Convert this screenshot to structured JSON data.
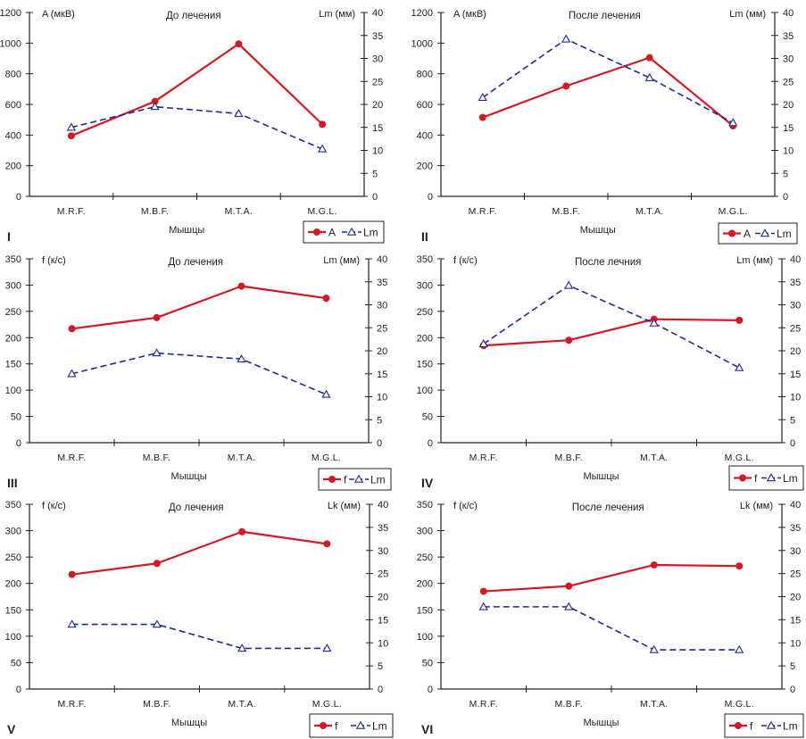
{
  "colors": {
    "series_primary": "#d21a24",
    "series_secondary": "#1f2a8f",
    "axis": "#222222"
  },
  "chart_data": [
    {
      "panel": "I",
      "type": "line",
      "title": "До лечения",
      "xlabel": "Мышцы",
      "ylabel_left": "A (мкВ)",
      "ylabel_right": "Lm (мм)",
      "categories": [
        "M.R.F.",
        "M.B.F.",
        "M.T.A.",
        "M.G.L."
      ],
      "ylim_left": [
        0,
        1200
      ],
      "yticks_left": [
        0,
        200,
        400,
        600,
        800,
        1000,
        1200
      ],
      "ylim_right": [
        0,
        40
      ],
      "yticks_right": [
        0,
        5,
        10,
        15,
        20,
        25,
        30,
        35,
        40
      ],
      "grid": false,
      "legend_position": "bottom-right",
      "series": [
        {
          "name": "A",
          "axis": "left",
          "style": "solid",
          "marker": "circle",
          "values": [
            395,
            620,
            995,
            470
          ]
        },
        {
          "name": "Lm",
          "axis": "right",
          "style": "dashed",
          "marker": "triangle",
          "values": [
            15.0,
            19.5,
            18.0,
            10.3
          ]
        }
      ]
    },
    {
      "panel": "II",
      "type": "line",
      "title": "После лечения",
      "xlabel": "Мышцы",
      "ylabel_left": "A (мкВ)",
      "ylabel_right": "Lm (мм)",
      "categories": [
        "M.R.F.",
        "M.B.F.",
        "M.T.A.",
        "M.G.L."
      ],
      "ylim_left": [
        0,
        1200
      ],
      "yticks_left": [
        0,
        200,
        400,
        600,
        800,
        1000,
        1200
      ],
      "ylim_right": [
        0,
        40
      ],
      "yticks_right": [
        0,
        5,
        10,
        15,
        20,
        25,
        30,
        35,
        40
      ],
      "grid": false,
      "legend_position": "bottom-right",
      "series": [
        {
          "name": "A",
          "axis": "left",
          "style": "solid",
          "marker": "circle",
          "values": [
            515,
            720,
            905,
            460
          ]
        },
        {
          "name": "Lm",
          "axis": "right",
          "style": "dashed",
          "marker": "triangle",
          "values": [
            21.5,
            34.2,
            25.8,
            16.0
          ]
        }
      ]
    },
    {
      "panel": "III",
      "type": "line",
      "title": "До лечения",
      "xlabel": "Мышцы",
      "ylabel_left": "f (к/с)",
      "ylabel_right": "Lm (мм)",
      "categories": [
        "M.R.F.",
        "M.B.F.",
        "M.T.A.",
        "M.G.L."
      ],
      "ylim_left": [
        0,
        350
      ],
      "yticks_left": [
        0,
        50,
        100,
        150,
        200,
        250,
        300,
        350
      ],
      "ylim_right": [
        0,
        40
      ],
      "yticks_right": [
        0,
        5,
        10,
        15,
        20,
        25,
        30,
        35,
        40
      ],
      "grid": false,
      "legend_position": "bottom-right",
      "series": [
        {
          "name": "f",
          "axis": "left",
          "style": "solid",
          "marker": "circle",
          "values": [
            217,
            238,
            298,
            275
          ]
        },
        {
          "name": "Lm",
          "axis": "right",
          "style": "dashed",
          "marker": "triangle",
          "values": [
            15.0,
            19.5,
            18.2,
            10.5
          ]
        }
      ]
    },
    {
      "panel": "IV",
      "type": "line",
      "title": "После лечния",
      "xlabel": "Мышцы",
      "ylabel_left": "f (к/с)",
      "ylabel_right": "Lm (мм)",
      "categories": [
        "M.R.F.",
        "M.B.F.",
        "M.T.A.",
        "M.G.L."
      ],
      "ylim_left": [
        0,
        350
      ],
      "yticks_left": [
        0,
        50,
        100,
        150,
        200,
        250,
        300,
        350
      ],
      "ylim_right": [
        0,
        40
      ],
      "yticks_right": [
        0,
        5,
        10,
        15,
        20,
        25,
        30,
        35,
        40
      ],
      "grid": false,
      "legend_position": "bottom-right",
      "series": [
        {
          "name": "f",
          "axis": "left",
          "style": "solid",
          "marker": "circle",
          "values": [
            185,
            195,
            235,
            233
          ]
        },
        {
          "name": "Lm",
          "axis": "right",
          "style": "dashed",
          "marker": "triangle",
          "values": [
            21.5,
            34.2,
            26.0,
            16.3
          ]
        }
      ]
    },
    {
      "panel": "V",
      "type": "line",
      "title": "До лечения",
      "xlabel": "Мышцы",
      "ylabel_left": "f (к/с)",
      "ylabel_right": "Lk (мм)",
      "categories": [
        "M.R.F.",
        "M.B.F.",
        "M.T.A.",
        "M.G.L."
      ],
      "ylim_left": [
        0,
        350
      ],
      "yticks_left": [
        0,
        50,
        100,
        150,
        200,
        250,
        300,
        350
      ],
      "ylim_right": [
        0,
        40
      ],
      "yticks_right": [
        0,
        5,
        10,
        15,
        20,
        25,
        30,
        35,
        40
      ],
      "grid": false,
      "legend_position": "bottom-right",
      "series": [
        {
          "name": "f",
          "axis": "left",
          "style": "solid",
          "marker": "circle",
          "values": [
            217,
            238,
            298,
            275
          ]
        },
        {
          "name": "Lm",
          "axis": "right",
          "style": "dashed",
          "marker": "triangle",
          "values": [
            14.0,
            14.0,
            8.8,
            8.8
          ]
        }
      ]
    },
    {
      "panel": "VI",
      "type": "line",
      "title": "После лечения",
      "xlabel": "Мышцы",
      "ylabel_left": "f (к/с)",
      "ylabel_right": "Lk (мм)",
      "categories": [
        "M.R.F.",
        "M.B.F.",
        "M.T.A.",
        "M.G.L."
      ],
      "ylim_left": [
        0,
        350
      ],
      "yticks_left": [
        0,
        50,
        100,
        150,
        200,
        250,
        300,
        350
      ],
      "ylim_right": [
        0,
        40
      ],
      "yticks_right": [
        0,
        5,
        10,
        15,
        20,
        25,
        30,
        35,
        40
      ],
      "grid": false,
      "legend_position": "bottom-right",
      "series": [
        {
          "name": "f",
          "axis": "left",
          "style": "solid",
          "marker": "circle",
          "values": [
            185,
            195,
            235,
            233
          ]
        },
        {
          "name": "Lm",
          "axis": "right",
          "style": "dashed",
          "marker": "triangle",
          "values": [
            17.8,
            17.8,
            8.5,
            8.5
          ]
        }
      ]
    }
  ]
}
